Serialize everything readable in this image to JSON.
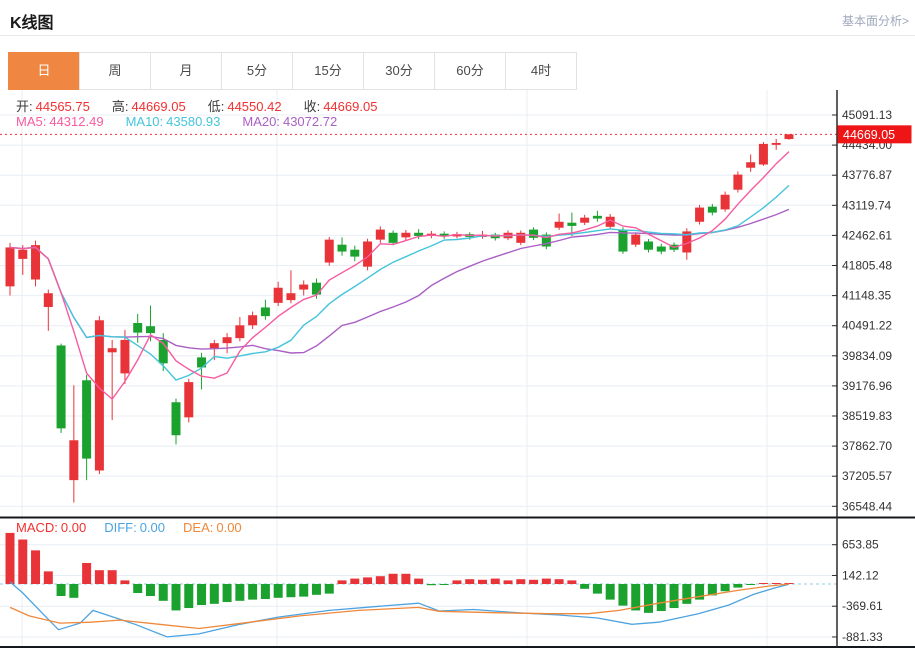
{
  "header": {
    "title": "K线图",
    "link_label": "基本面分析>"
  },
  "tabs": {
    "items": [
      "日",
      "周",
      "月",
      "5分",
      "15分",
      "30分",
      "60分",
      "4时"
    ],
    "selected_index": 0
  },
  "ohlc_legend": {
    "value_color": "#f23030",
    "items": [
      {
        "label": "开:",
        "value": "44565.75"
      },
      {
        "label": "高:",
        "value": "44669.05"
      },
      {
        "label": "低:",
        "value": "44550.42"
      },
      {
        "label": "收:",
        "value": "44669.05"
      }
    ]
  },
  "ma_legend": {
    "items": [
      {
        "label": "MA5:",
        "value": "44312.49",
        "color": "#f75ba0"
      },
      {
        "label": "MA10:",
        "value": "43580.93",
        "color": "#45c5db"
      },
      {
        "label": "MA20:",
        "value": "43072.72",
        "color": "#aa5fc4"
      }
    ]
  },
  "macd_legend": {
    "items": [
      {
        "label": "MACD:",
        "value": "0.00",
        "color": "#f23030"
      },
      {
        "label": "DIFF:",
        "value": "0.00",
        "color": "#4da3e0"
      },
      {
        "label": "DEA:",
        "value": "0.00",
        "color": "#f0883a"
      }
    ]
  },
  "colors": {
    "up": "#e83438",
    "down": "#1ba12e",
    "ma5": "#f75ba0",
    "ma10": "#45c5db",
    "ma20": "#aa5fc4",
    "diff": "#4da3e0",
    "dea": "#f0883a",
    "accent": "#ef8742",
    "price_line": "#f23030",
    "badge": "#ed1515",
    "grid": "#e8eef5",
    "axis": "#2a2a2a",
    "label": "#333333",
    "zero_line": "#8ecdeb"
  },
  "chart_data": {
    "type": "candlestick",
    "title": "K线图",
    "legend_position": "top-left",
    "grid": true,
    "main_pane": {
      "y_axis_labels": [
        "45091.13",
        "44434.00",
        "43776.87",
        "43119.74",
        "42462.61",
        "41805.48",
        "41148.35",
        "40491.22",
        "39834.09",
        "39176.96",
        "38519.83",
        "37862.70",
        "37205.57",
        "36548.44"
      ],
      "y_range": [
        36548.44,
        45091.13
      ],
      "last_price_label": "44669.05",
      "last_price": 44669.05,
      "candles_ochl": [
        [
          41350,
          42200,
          42300,
          41150
        ],
        [
          41950,
          42150,
          42250,
          41600
        ],
        [
          41500,
          42250,
          42350,
          41350
        ],
        [
          40900,
          41200,
          41280,
          40380
        ],
        [
          40060,
          38250,
          40100,
          38150
        ],
        [
          37120,
          37990,
          39190,
          36630
        ],
        [
          39300,
          37590,
          39420,
          37120
        ],
        [
          37330,
          40610,
          40700,
          37250
        ],
        [
          39910,
          40000,
          40180,
          38430
        ],
        [
          39450,
          40180,
          40400,
          39220
        ],
        [
          40550,
          40340,
          40750,
          40120
        ],
        [
          40480,
          40330,
          40930,
          40150
        ],
        [
          40180,
          39670,
          40330,
          39500
        ],
        [
          38820,
          38100,
          38900,
          37900
        ],
        [
          38490,
          39260,
          39330,
          38380
        ],
        [
          39800,
          39580,
          39900,
          39100
        ],
        [
          40000,
          40110,
          40180,
          39740
        ],
        [
          40110,
          40240,
          40330,
          39890
        ],
        [
          40220,
          40500,
          40680,
          40150
        ],
        [
          40500,
          40720,
          40800,
          40420
        ],
        [
          40890,
          40700,
          41060,
          40620
        ],
        [
          40990,
          41320,
          41450,
          40920
        ],
        [
          41050,
          41200,
          41700,
          40980
        ],
        [
          41280,
          41390,
          41480,
          41150
        ],
        [
          41430,
          41170,
          41520,
          41080
        ],
        [
          41870,
          42370,
          42430,
          41800
        ],
        [
          42260,
          42110,
          42420,
          42020
        ],
        [
          42150,
          42000,
          42240,
          41900
        ],
        [
          41780,
          42330,
          42390,
          41700
        ],
        [
          42370,
          42590,
          42660,
          42300
        ],
        [
          42520,
          42300,
          42570,
          42250
        ],
        [
          42420,
          42520,
          42580,
          42360
        ],
        [
          42520,
          42450,
          42600,
          42380
        ],
        [
          42450,
          42500,
          42560,
          42400
        ],
        [
          42500,
          42440,
          42550,
          42390
        ],
        [
          42440,
          42490,
          42540,
          42400
        ],
        [
          42490,
          42430,
          42530,
          42370
        ],
        [
          42430,
          42480,
          42560,
          42390
        ],
        [
          42480,
          42400,
          42520,
          42350
        ],
        [
          42400,
          42520,
          42570,
          42360
        ],
        [
          42300,
          42520,
          42570,
          42250
        ],
        [
          42590,
          42410,
          42640,
          42360
        ],
        [
          42480,
          42220,
          42530,
          42160
        ],
        [
          42630,
          42760,
          42940,
          42580
        ],
        [
          42740,
          42670,
          42960,
          42450
        ],
        [
          42740,
          42850,
          42910,
          42690
        ],
        [
          42890,
          42830,
          43000,
          42760
        ],
        [
          42650,
          42870,
          42930,
          42600
        ],
        [
          42590,
          42110,
          42640,
          42060
        ],
        [
          42260,
          42480,
          42530,
          42210
        ],
        [
          42330,
          42150,
          42380,
          42090
        ],
        [
          42220,
          42110,
          42280,
          42050
        ],
        [
          42260,
          42150,
          42310,
          42100
        ],
        [
          42090,
          42550,
          42620,
          41930
        ],
        [
          42760,
          43070,
          43130,
          42700
        ],
        [
          43090,
          42960,
          43150,
          42900
        ],
        [
          43030,
          43350,
          43420,
          42980
        ],
        [
          43460,
          43790,
          43860,
          43400
        ],
        [
          43940,
          44060,
          44230,
          43850
        ],
        [
          44010,
          44460,
          44500,
          43980
        ],
        [
          44440,
          44480,
          44570,
          44330
        ],
        [
          44565.75,
          44669.05,
          44669.05,
          44550.42
        ]
      ],
      "moving_average_windows": [
        5,
        10,
        20
      ]
    },
    "macd_pane": {
      "y_axis_labels": [
        "653.85",
        "142.12",
        "-369.61",
        "-881.33"
      ],
      "histogram": [
        850,
        740,
        560,
        210,
        -200,
        -230,
        350,
        230,
        230,
        60,
        -150,
        -200,
        -280,
        -440,
        -400,
        -350,
        -330,
        -300,
        -280,
        -260,
        -250,
        -230,
        -220,
        -210,
        -180,
        -160,
        60,
        90,
        110,
        130,
        170,
        170,
        90,
        -20,
        -15,
        60,
        80,
        70,
        90,
        60,
        80,
        70,
        90,
        80,
        60,
        -80,
        -160,
        -260,
        -360,
        -440,
        -480,
        -450,
        -400,
        -330,
        -260,
        -190,
        -120,
        -60,
        -15,
        10,
        15,
        0
      ],
      "diff_points": [
        [
          0,
          35
        ],
        [
          1,
          -150
        ],
        [
          2.5,
          -480
        ],
        [
          3.8,
          -760
        ],
        [
          5.5,
          -650
        ],
        [
          6.5,
          -440
        ],
        [
          7.8,
          -530
        ],
        [
          9.8,
          -670
        ],
        [
          12.3,
          -880
        ],
        [
          14.8,
          -830
        ],
        [
          18,
          -670
        ],
        [
          21,
          -550
        ],
        [
          25,
          -440
        ],
        [
          29,
          -370
        ],
        [
          32,
          -320
        ],
        [
          33.6,
          -450
        ],
        [
          36.3,
          -425
        ],
        [
          39.8,
          -480
        ],
        [
          43,
          -515
        ],
        [
          46,
          -565
        ],
        [
          48.7,
          -670
        ],
        [
          50.8,
          -635
        ],
        [
          53.9,
          -495
        ],
        [
          56.3,
          -350
        ],
        [
          58.2,
          -175
        ],
        [
          59.8,
          -70
        ],
        [
          61,
          -5
        ]
      ],
      "dea_points": [
        [
          0,
          -390
        ],
        [
          1.5,
          -530
        ],
        [
          3.9,
          -650
        ],
        [
          6.3,
          -635
        ],
        [
          8.6,
          -600
        ],
        [
          11.7,
          -670
        ],
        [
          14.8,
          -740
        ],
        [
          18.8,
          -635
        ],
        [
          22.7,
          -530
        ],
        [
          27.3,
          -440
        ],
        [
          32,
          -390
        ],
        [
          33.6,
          -455
        ],
        [
          38.3,
          -480
        ],
        [
          42.2,
          -495
        ],
        [
          45.3,
          -495
        ],
        [
          47.7,
          -440
        ],
        [
          50.8,
          -320
        ],
        [
          53.9,
          -212
        ],
        [
          57,
          -106
        ],
        [
          59.4,
          -35
        ],
        [
          61,
          0
        ]
      ]
    }
  }
}
